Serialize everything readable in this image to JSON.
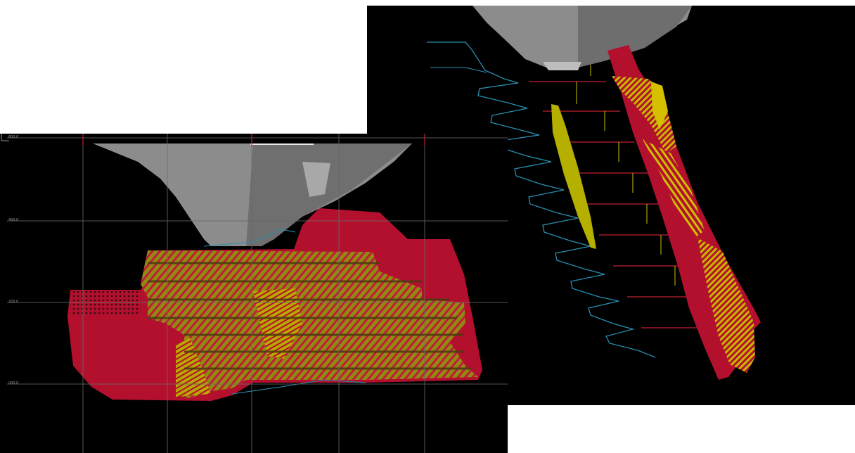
{
  "views": {
    "long_section": {
      "elevation_labels": [
        "600.0",
        "400.0",
        "200.0",
        "000.0"
      ],
      "easting_labels": [
        "",
        "",
        "",
        "",
        ""
      ]
    },
    "oblique_view": {}
  },
  "colors": {
    "background": "#000000",
    "pit_shell": "#8a8a8a",
    "stope_red": "#b3102e",
    "ore_yellow": "#b5b000",
    "drillhole": "#2a8fb0",
    "grid": "#5a5a5a",
    "level_marker": "#c02030"
  }
}
